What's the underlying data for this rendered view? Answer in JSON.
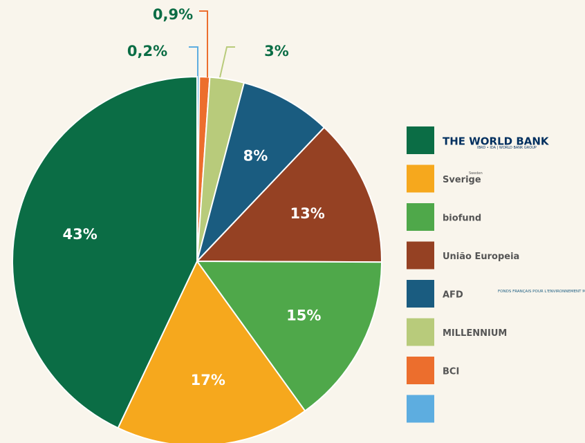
{
  "chart_data": {
    "type": "pie",
    "categories": [
      null,
      "BCI",
      "MILLENNIUM",
      "AFD",
      "União Europeia",
      "biofund",
      "Sverige",
      "THE WORLD BANK"
    ],
    "values": [
      0.2,
      0.9,
      3,
      8,
      13,
      15,
      17,
      43
    ],
    "value_labels": [
      "0,2%",
      "0,9%",
      "3%",
      "8%",
      "13%",
      "15%",
      "17%",
      "43%"
    ],
    "colors": [
      "#5dade0",
      "#ec6e2d",
      "#b8cb7b",
      "#1a5c80",
      "#954123",
      "#4fa84a",
      "#f6a81d",
      "#0b6d45"
    ],
    "legend_extra": {
      "world_bank_sub": "IBRD • IDA | WORLD BANK GROUP",
      "sweden_small": "Sweden",
      "ffem": "FONDS FRANÇAIS POUR L'ENVIRONNEMENT MONDIAL"
    }
  }
}
